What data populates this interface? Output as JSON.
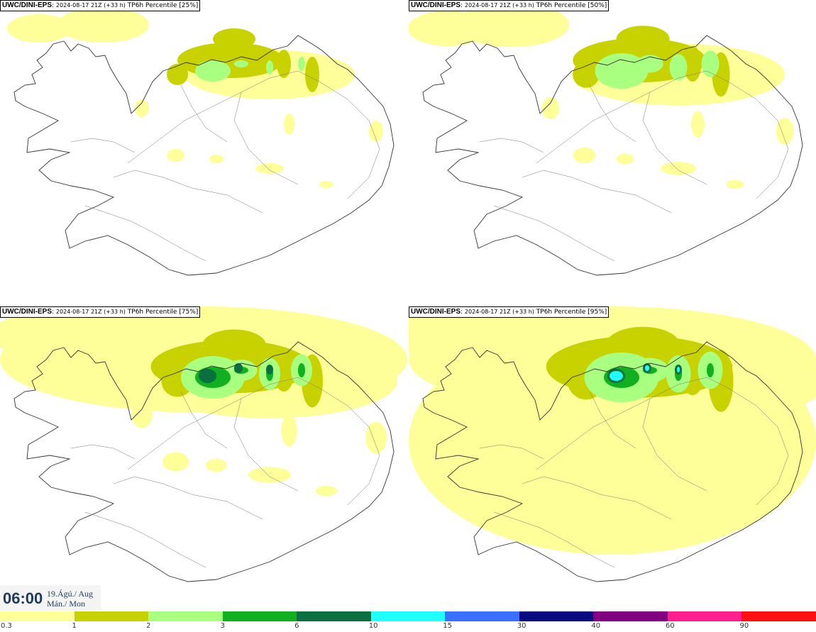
{
  "panels": [
    {
      "model": "UWC/DINI-EPS",
      "run": "2024-08-17 21Z (+33 h)",
      "product": "TP6h Percentile [25%]",
      "intensity": 0
    },
    {
      "model": "UWC/DINI-EPS",
      "run": "2024-08-17 21Z (+33 h)",
      "product": "TP6h Percentile [50%]",
      "intensity": 1
    },
    {
      "model": "UWC/DINI-EPS",
      "run": "2024-08-17 21Z (+33 h)",
      "product": "TP6h Percentile [75%]",
      "intensity": 2
    },
    {
      "model": "UWC/DINI-EPS",
      "run": "2024-08-17 21Z (+33 h)",
      "product": "TP6h Percentile [95%]",
      "intensity": 3
    }
  ],
  "timestamp": {
    "time": "06:00",
    "date": "19.Ágú./ Aug",
    "day": "Mán./ Mon"
  },
  "legend": {
    "colors": [
      "#ffff99",
      "#c8d200",
      "#a8ff80",
      "#10b020",
      "#0a7040",
      "#20ffff",
      "#3a70ff",
      "#0a0a80",
      "#800080",
      "#ff1e90",
      "#ff1010"
    ],
    "ticks": [
      "0.3",
      "1",
      "2",
      "3",
      "6",
      "10",
      "15",
      "30",
      "40",
      "60",
      "90"
    ]
  }
}
